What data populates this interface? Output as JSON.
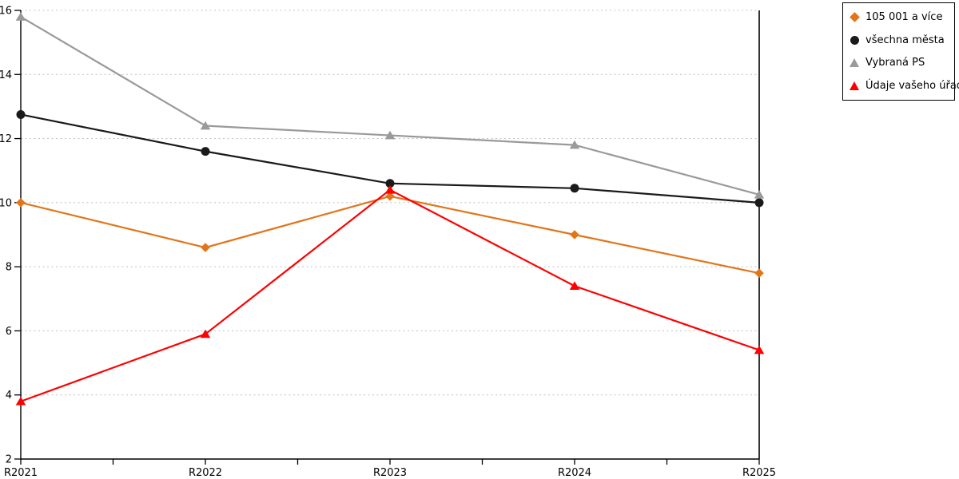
{
  "chart_data": {
    "type": "line",
    "title": "",
    "xlabel": "",
    "ylabel": "",
    "categories": [
      "R2021",
      "R2022",
      "R2023",
      "R2024",
      "R2025"
    ],
    "series": [
      {
        "name": "105 001 a více",
        "color": "#E2751A",
        "marker": "diamond",
        "values": [
          10.0,
          8.6,
          10.2,
          9.0,
          7.8
        ]
      },
      {
        "name": "všechna města",
        "color": "#1A1A1A",
        "marker": "circle",
        "values": [
          12.75,
          11.6,
          10.6,
          10.45,
          10.0
        ]
      },
      {
        "name": "Vybraná PS",
        "color": "#9A9A9A",
        "marker": "triangle",
        "values": [
          15.8,
          12.4,
          12.1,
          11.8,
          10.25
        ]
      },
      {
        "name": "Údaje vašeho úřadu",
        "color": "#FF0000",
        "marker": "triangle",
        "values": [
          3.8,
          5.9,
          10.4,
          7.4,
          5.4
        ]
      }
    ],
    "ylim": [
      2,
      16
    ],
    "yticks": [
      2,
      4,
      6,
      8,
      10,
      12,
      14,
      16
    ],
    "grid": "horizontal-dotted",
    "gridline_color": "#C6C6C6",
    "axis_color": "#000000",
    "legend_position": "top-right",
    "legend_border_color": "#000000"
  }
}
